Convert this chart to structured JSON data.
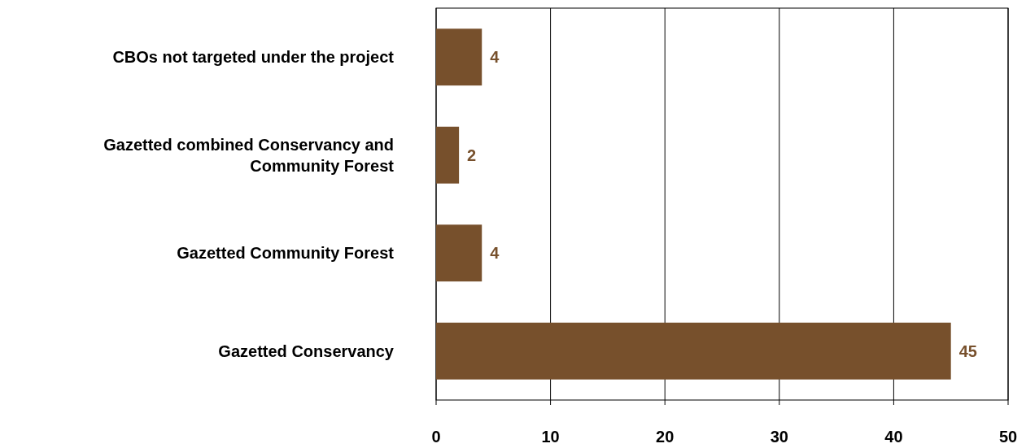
{
  "chart_data": {
    "type": "bar",
    "orientation": "horizontal",
    "categories": [
      "CBOs not targeted under the project",
      "Gazetted combined Conservancy and Community Forest",
      "Gazetted Community Forest",
      "Gazetted Conservancy"
    ],
    "values": [
      4,
      2,
      4,
      45
    ],
    "color": "#77502c",
    "xlim": [
      0,
      50
    ],
    "xticks": [
      0,
      10,
      20,
      30,
      40,
      50
    ],
    "grid": "x",
    "data_labels": true
  }
}
